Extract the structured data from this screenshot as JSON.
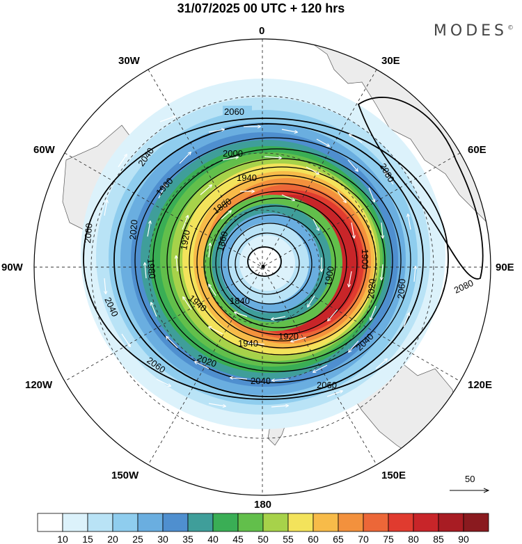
{
  "title": "31/07/2025  00 UTC  + 120 hrs",
  "brand": {
    "name": "MODES",
    "mark": "©"
  },
  "meridian_labels": [
    {
      "text": "0",
      "name": "lon-label-0"
    },
    {
      "text": "30E",
      "name": "lon-label-30e"
    },
    {
      "text": "60E",
      "name": "lon-label-60e"
    },
    {
      "text": "90E",
      "name": "lon-label-90e"
    },
    {
      "text": "120E",
      "name": "lon-label-120e"
    },
    {
      "text": "150E",
      "name": "lon-label-150e"
    },
    {
      "text": "180",
      "name": "lon-label-180"
    },
    {
      "text": "150W",
      "name": "lon-label-150w"
    },
    {
      "text": "120W",
      "name": "lon-label-120w"
    },
    {
      "text": "90W",
      "name": "lon-label-90w"
    },
    {
      "text": "60W",
      "name": "lon-label-60w"
    },
    {
      "text": "30W",
      "name": "lon-label-30w"
    }
  ],
  "contour_labels": [
    "2060",
    "2040",
    "2000",
    "1940",
    "1960",
    "2020",
    "1920",
    "1880",
    "1860",
    "1840",
    "1980",
    "1900",
    "2080"
  ],
  "vector_reference": {
    "value": "50"
  },
  "colorbar": {
    "colors": [
      "#ffffff",
      "#dcf2fb",
      "#b9e3f6",
      "#8fcdee",
      "#6aaee0",
      "#4f8fcf",
      "#3f9e9a",
      "#3aae55",
      "#62bf4b",
      "#a7d24a",
      "#f3e35b",
      "#f7bb49",
      "#f3913d",
      "#ec6738",
      "#e03b2f",
      "#c82529",
      "#a81c23",
      "#8a1a1f"
    ],
    "labels": [
      "10",
      "15",
      "20",
      "25",
      "30",
      "35",
      "40",
      "45",
      "50",
      "55",
      "60",
      "65",
      "70",
      "75",
      "80",
      "85",
      "90"
    ]
  }
}
